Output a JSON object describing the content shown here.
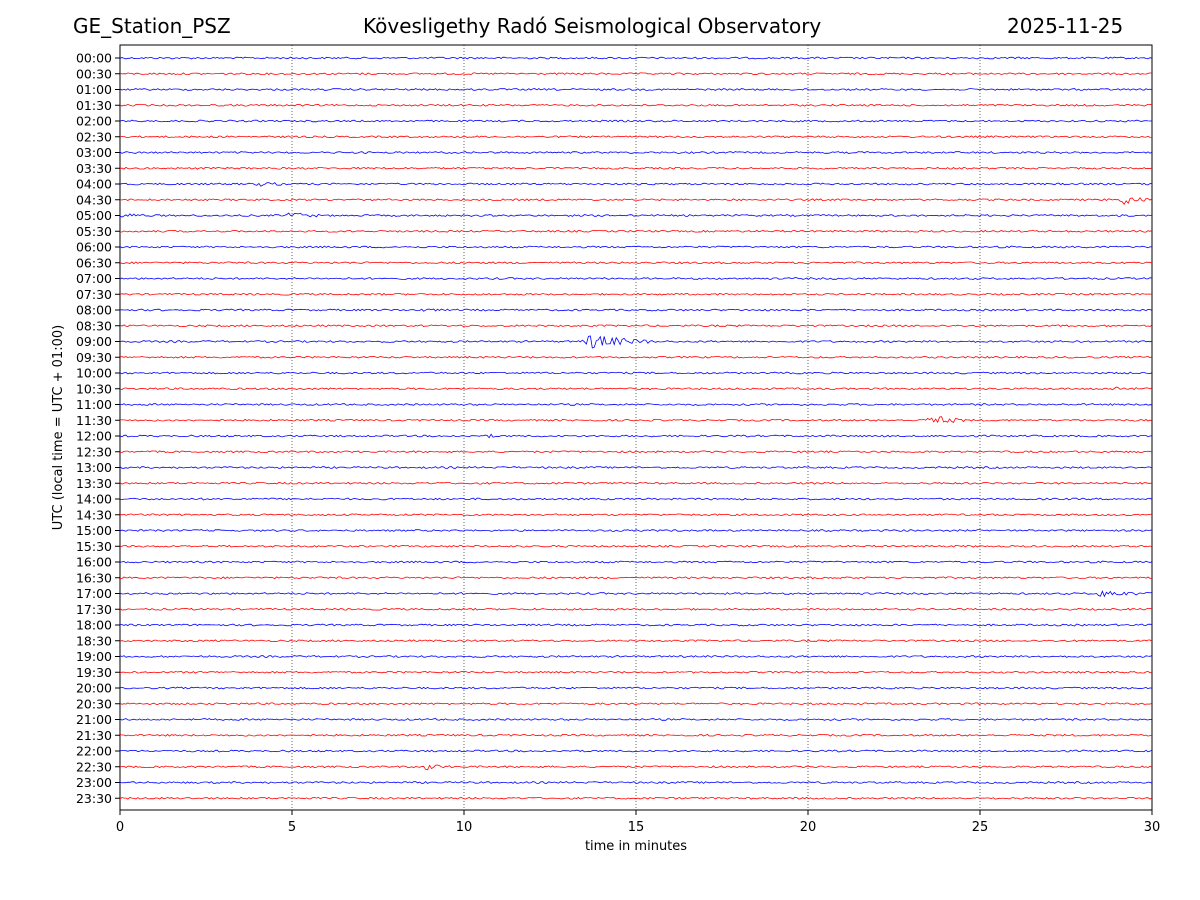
{
  "header": {
    "station": "GE_Station_PSZ",
    "observatory": "Kövesligethy Radó Seismological Observatory",
    "date": "2025-11-25"
  },
  "chart_data": {
    "type": "line",
    "title": "Kövesligethy Radó Seismological Observatory",
    "xlabel": "time in minutes",
    "ylabel": "UTC (local time = UTC + 01:00)",
    "xlim": [
      0,
      30
    ],
    "xticks": [
      "0",
      "5",
      "10",
      "15",
      "20",
      "25",
      "30"
    ],
    "grid": "vertical dotted lines at 5-minute intervals",
    "row_labels": [
      "00:00",
      "00:30",
      "01:00",
      "01:30",
      "02:00",
      "02:30",
      "03:00",
      "03:30",
      "04:00",
      "04:30",
      "05:00",
      "05:30",
      "06:00",
      "06:30",
      "07:00",
      "07:30",
      "08:00",
      "08:30",
      "09:00",
      "09:30",
      "10:00",
      "10:30",
      "11:00",
      "11:30",
      "12:00",
      "12:30",
      "13:00",
      "13:30",
      "14:00",
      "14:30",
      "15:00",
      "15:30",
      "16:00",
      "16:30",
      "17:00",
      "17:30",
      "18:00",
      "18:30",
      "19:00",
      "19:30",
      "20:00",
      "20:30",
      "21:00",
      "21:30",
      "22:00",
      "22:30",
      "23:00",
      "23:30"
    ],
    "series_colors": [
      "#0000ff",
      "#ff0000"
    ],
    "events": [
      {
        "row": "04:00",
        "start": 3.8,
        "end": 4.8,
        "amplitude": 2
      },
      {
        "row": "04:30",
        "start": 29.0,
        "end": 30.0,
        "amplitude": 5
      },
      {
        "row": "05:00",
        "start": 0.0,
        "end": 0.8,
        "amplitude": 2
      },
      {
        "row": "05:00",
        "start": 4.8,
        "end": 5.8,
        "amplitude": 3
      },
      {
        "row": "08:00",
        "start": 8.6,
        "end": 9.2,
        "amplitude": 1.5
      },
      {
        "row": "09:00",
        "start": 13.4,
        "end": 15.5,
        "amplitude": 7
      },
      {
        "row": "10:30",
        "start": 28.8,
        "end": 29.8,
        "amplitude": 1.5
      },
      {
        "row": "11:30",
        "start": 23.4,
        "end": 24.6,
        "amplitude": 5
      },
      {
        "row": "12:00",
        "start": 10.7,
        "end": 10.9,
        "amplitude": 2
      },
      {
        "row": "17:00",
        "start": 28.3,
        "end": 30.0,
        "amplitude": 3
      },
      {
        "row": "22:30",
        "start": 8.8,
        "end": 9.6,
        "amplitude": 3
      }
    ]
  }
}
